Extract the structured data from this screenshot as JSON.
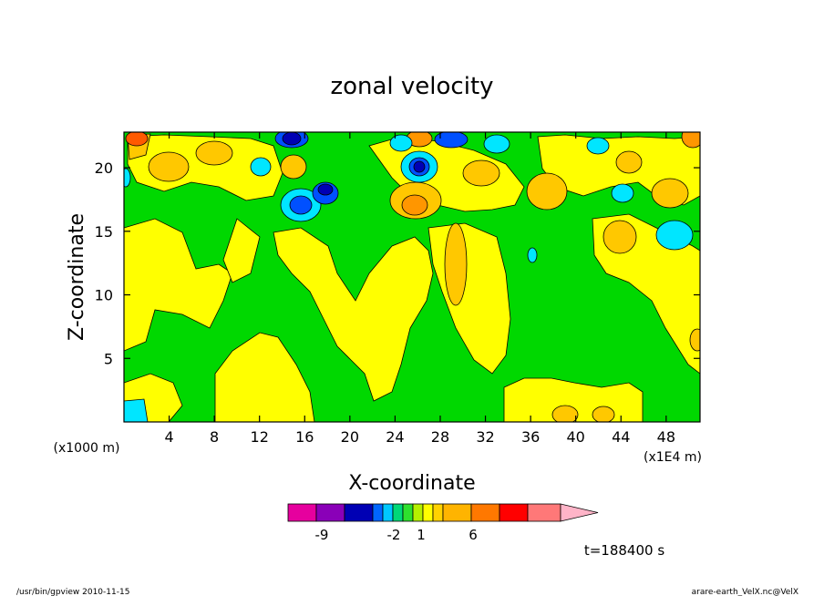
{
  "chart_data": {
    "type": "heatmap",
    "title": "zonal velocity",
    "xlabel": "X-coordinate",
    "ylabel": "Z-coordinate",
    "x_unit_label": "(x1E4 m)",
    "z_unit_label": "(x1000 m)",
    "xlim": [
      0,
      51
    ],
    "ylim": [
      0,
      22.8
    ],
    "x_ticks": [
      "4",
      "8",
      "12",
      "16",
      "20",
      "24",
      "28",
      "32",
      "36",
      "40",
      "44",
      "48"
    ],
    "y_ticks": [
      "5",
      "10",
      "15",
      "20"
    ],
    "time_label": "t=188400 s",
    "colorbar": {
      "tick_labels": [
        "-9",
        "-2",
        "1",
        "6"
      ],
      "colors": [
        "#e6009e",
        "#8a00b8",
        "#0000b4",
        "#0066ff",
        "#00c8ff",
        "#00d878",
        "#2ee02e",
        "#b4f000",
        "#ffff00",
        "#ffd200",
        "#ffb400",
        "#ff7800",
        "#ff0000",
        "#ff7878",
        "#ffb4c8"
      ]
    },
    "color_levels": {
      "blue_dark": "#0000b4",
      "blue": "#0050ff",
      "cyan": "#00e6ff",
      "green": "#00d800",
      "yellow": "#ffff00",
      "orange_light": "#ffc800",
      "orange": "#ff9600",
      "red_orange": "#ff5a00"
    }
  },
  "footer": {
    "left": "/usr/bin/gpview   2010-11-15",
    "right": "arare-earth_VelX.nc@VelX"
  }
}
